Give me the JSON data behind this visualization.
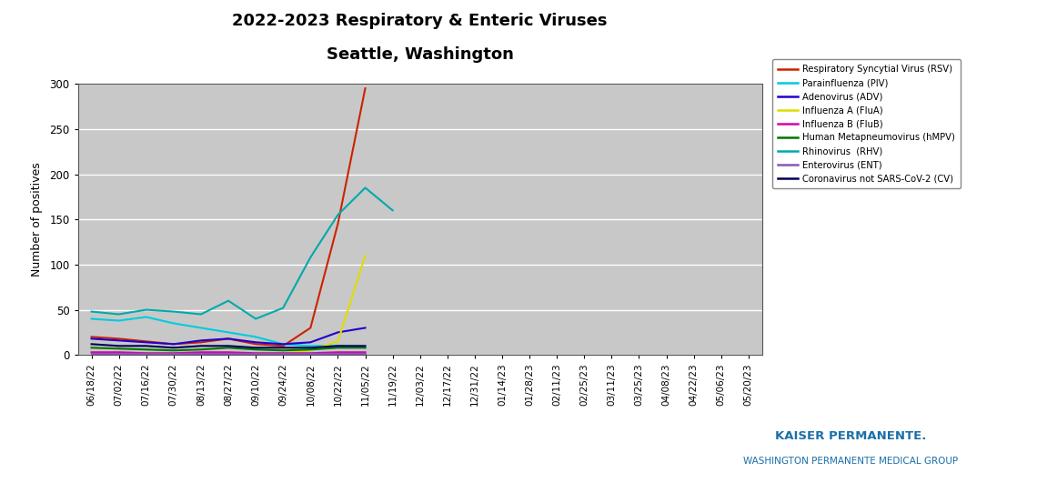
{
  "title_line1": "2022-2023 Respiratory & Enteric Viruses",
  "title_line2": "Seattle, Washington",
  "ylabel": "Number of positives",
  "ylim": [
    0,
    300
  ],
  "yticks": [
    0,
    50,
    100,
    150,
    200,
    250,
    300
  ],
  "background_color": "#c8c8c8",
  "fig_bg_color": "#ffffff",
  "x_labels": [
    "06/18/22",
    "07/02/22",
    "07/16/22",
    "07/30/22",
    "08/13/22",
    "08/27/22",
    "09/10/22",
    "09/24/22",
    "10/08/22",
    "10/22/22",
    "11/05/22",
    "11/19/22",
    "12/03/22",
    "12/17/22",
    "12/31/22",
    "01/14/23",
    "01/28/23",
    "02/11/23",
    "02/25/23",
    "03/11/23",
    "03/25/23",
    "04/08/23",
    "04/22/23",
    "05/06/23",
    "05/20/23"
  ],
  "series": {
    "RSV": {
      "color": "#cc2200",
      "label": "Respiratory Syncytial Virus (RSV)",
      "data": [
        20,
        18,
        15,
        12,
        14,
        18,
        12,
        10,
        30,
        145,
        295,
        null,
        null,
        null,
        null,
        null,
        null,
        null,
        null,
        null,
        null,
        null,
        null,
        null,
        null
      ]
    },
    "PIV": {
      "color": "#00ccdd",
      "label": "Parainfluenza (PIV)",
      "data": [
        40,
        38,
        42,
        35,
        30,
        25,
        20,
        12,
        10,
        10,
        8,
        null,
        null,
        null,
        null,
        null,
        null,
        null,
        null,
        null,
        null,
        null,
        null,
        null,
        null
      ]
    },
    "ADV": {
      "color": "#2200cc",
      "label": "Adenovirus (ADV)",
      "data": [
        18,
        16,
        14,
        12,
        16,
        18,
        14,
        12,
        14,
        25,
        30,
        null,
        null,
        null,
        null,
        null,
        null,
        null,
        null,
        null,
        null,
        null,
        null,
        null,
        null
      ]
    },
    "FluA": {
      "color": "#dddd00",
      "label": "Influenza A (FluA)",
      "data": [
        2,
        2,
        2,
        2,
        2,
        2,
        2,
        2,
        5,
        15,
        110,
        null,
        null,
        null,
        null,
        null,
        null,
        null,
        null,
        null,
        null,
        null,
        null,
        null,
        null
      ]
    },
    "FluB": {
      "color": "#dd00aa",
      "label": "Influenza B (FluB)",
      "data": [
        3,
        3,
        2,
        2,
        3,
        3,
        2,
        2,
        2,
        3,
        3,
        null,
        null,
        null,
        null,
        null,
        null,
        null,
        null,
        null,
        null,
        null,
        null,
        null,
        null
      ]
    },
    "hMPV": {
      "color": "#007700",
      "label": "Human Metapneumovirus (hMPV)",
      "data": [
        8,
        7,
        6,
        5,
        6,
        8,
        6,
        5,
        6,
        8,
        8,
        null,
        null,
        null,
        null,
        null,
        null,
        null,
        null,
        null,
        null,
        null,
        null,
        null,
        null
      ]
    },
    "RHV": {
      "color": "#00aaaa",
      "label": "Rhinovirus  (RHV)",
      "data": [
        48,
        45,
        50,
        48,
        45,
        60,
        40,
        52,
        108,
        155,
        185,
        160,
        null,
        null,
        null,
        null,
        null,
        null,
        null,
        null,
        null,
        null,
        null,
        null,
        null
      ]
    },
    "ENT": {
      "color": "#8855bb",
      "label": "Enterovirus (ENT)",
      "data": [
        1,
        1,
        1,
        1,
        1,
        1,
        1,
        1,
        1,
        1,
        1,
        null,
        null,
        null,
        null,
        null,
        null,
        null,
        null,
        null,
        null,
        null,
        null,
        null,
        null
      ]
    },
    "CV": {
      "color": "#000055",
      "label": "Coronavirus not SARS-CoV-2 (CV)",
      "data": [
        12,
        10,
        10,
        8,
        10,
        10,
        8,
        8,
        8,
        10,
        10,
        null,
        null,
        null,
        null,
        null,
        null,
        null,
        null,
        null,
        null,
        null,
        null,
        null,
        null
      ]
    }
  },
  "series_order": [
    "RSV",
    "PIV",
    "ADV",
    "FluA",
    "FluB",
    "hMPV",
    "RHV",
    "ENT",
    "CV"
  ],
  "watermark_line1": "KAISER PERMANENTE.",
  "watermark_line2": "WASHINGTON PERMANENTE MEDICAL GROUP"
}
